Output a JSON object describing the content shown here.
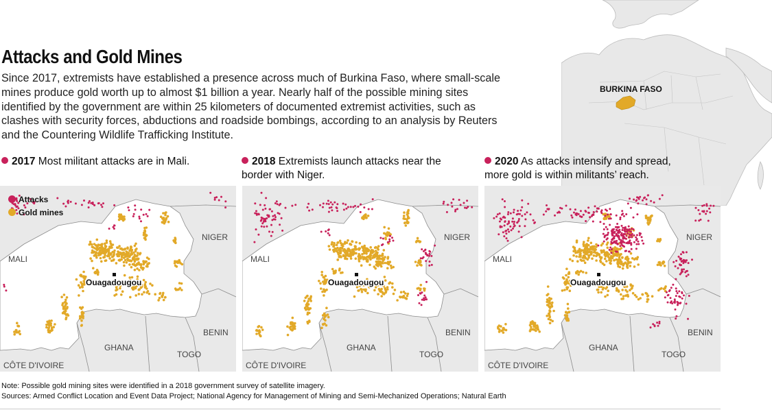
{
  "title": "Attacks and Gold Mines",
  "intro": "Since 2017, extremists have established a presence across much of Burkina Faso, where small-scale mines produce gold worth up to almost $1 billion a year. Nearly half of the possible mining sites identified by the government are within 25 kilometers of documented extremist activities, such as clashes with security forces, abductions and roadside bombings, according to an analysis by Reuters and the Countering Wildlife Trafficking Institute.",
  "locator": {
    "label": "BURKINA FASO"
  },
  "legend": {
    "attacks": "Attacks",
    "gold_mines": "Gold mines"
  },
  "colors": {
    "attack": "#c8215b",
    "gold": "#e2a928",
    "burkina": "#ffffff",
    "neighbors": "#e9e9e9",
    "border": "#8a8a8a",
    "locator_highlight": "#e2a928"
  },
  "panels": [
    {
      "year": "2017",
      "caption": "Most militant attacks are in Mali."
    },
    {
      "year": "2018",
      "caption": "Extremists launch attacks near the border with Niger."
    },
    {
      "year": "2020",
      "caption": "As attacks intensify and spread, more gold is within militants’ reach."
    }
  ],
  "map_labels": {
    "niger": "NIGER",
    "mali": "MALI",
    "capital": "Ouagadougou",
    "ghana": "GHANA",
    "benin": "BENIN",
    "togo": "TOGO",
    "cote_divoire": "CÔTE D'IVOIRE"
  },
  "note": "Note: Possible gold mining sites were identified in a 2018 government survey of satellite imagery.",
  "sources": "Sources: Armed Conflict Location and Event Data Project; National Agency for Management of Mining and Semi-Mechanized Operations; Natural Earth"
}
